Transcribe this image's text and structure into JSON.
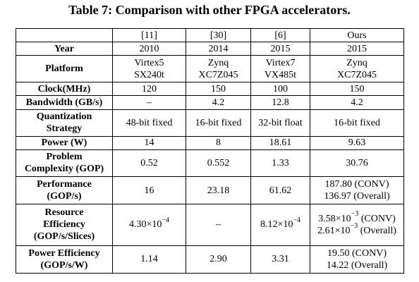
{
  "caption": "Table 7: Comparison with other FPGA accelerators.",
  "header": [
    "",
    "[11]",
    "[30]",
    "[6]",
    "Ours"
  ],
  "rows": {
    "year": {
      "label": "Year",
      "v": [
        "2010",
        "2014",
        "2015",
        "2015"
      ]
    },
    "platform": {
      "label": "Platform",
      "v": [
        [
          "Virtex5",
          "SX240t"
        ],
        [
          "Zynq",
          "XC7Z045"
        ],
        [
          "Virtex7",
          "VX485t"
        ],
        [
          "Zynq",
          "XC7Z045"
        ]
      ]
    },
    "clock": {
      "label": "Clock(MHz)",
      "v": [
        "120",
        "150",
        "100",
        "150"
      ]
    },
    "bandwidth": {
      "label": "Bandwidth (GB/s)",
      "v": [
        "–",
        "4.2",
        "12.8",
        "4.2"
      ]
    },
    "quant": {
      "label": [
        "Quantization",
        "Strategy"
      ],
      "v": [
        "48-bit fixed",
        "16-bit fixed",
        "32-bit float",
        "16-bit fixed"
      ]
    },
    "power": {
      "label": "Power (W)",
      "v": [
        "14",
        "8",
        "18.61",
        "9.63"
      ]
    },
    "complexity": {
      "label": [
        "Problem",
        "Complexity (GOP)"
      ],
      "v": [
        "0.52",
        "0.552",
        "1.33",
        "30.76"
      ]
    },
    "performance": {
      "label": [
        "Performance",
        "(GOP/s)"
      ],
      "v": [
        "16",
        "23.18",
        "61.62",
        [
          "187.80 (CONV)",
          "136.97 (Overall)"
        ]
      ]
    },
    "resource": {
      "label": [
        "Resource",
        "Efficiency",
        "(GOP/s/Slices)"
      ],
      "c11": {
        "mant": "4.30×10",
        "exp": "−4"
      },
      "c30": "–",
      "c6": {
        "mant": "8.12×10",
        "exp": "−4"
      },
      "ours": [
        {
          "mant": "3.58×10",
          "exp": "−3",
          "tail": " (CONV)"
        },
        {
          "mant": "2.61×10",
          "exp": "−3",
          "tail": " (Overall)"
        }
      ]
    },
    "poweff": {
      "label": [
        "Power Efficiency",
        "(GOP/s/W)"
      ],
      "v": [
        "1.14",
        "2.90",
        "3.31",
        [
          "19.50 (CONV)",
          "14.22 (Overall)"
        ]
      ]
    }
  }
}
